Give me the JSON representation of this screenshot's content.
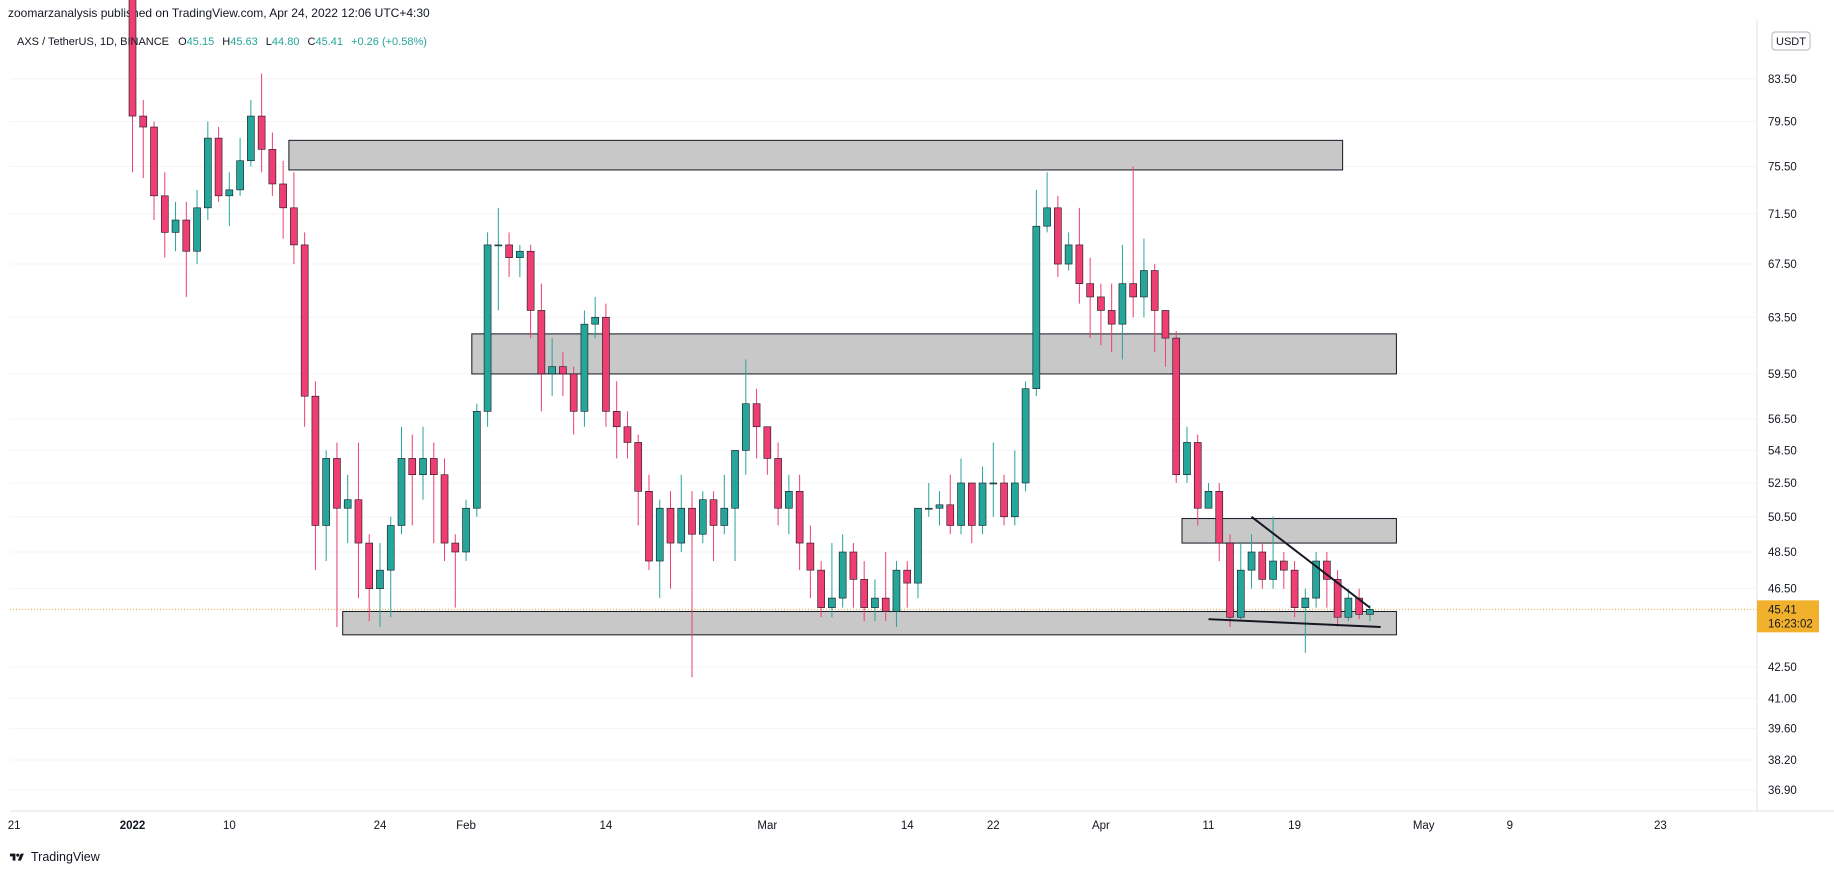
{
  "header": {
    "published": "zoomarzanalysis published on TradingView.com, Apr 24, 2022 12:06 UTC+4:30"
  },
  "legend": {
    "symbol": "AXS / TetherUS, 1D, BINANCE",
    "open_label": "O",
    "open": "45.15",
    "high_label": "H",
    "high": "45.63",
    "low_label": "L",
    "low": "44.80",
    "close_label": "C",
    "close": "45.41",
    "change": "+0.26 (+0.58%)"
  },
  "footer": {
    "brand": "TradingView"
  },
  "colors": {
    "up": "#26a69a",
    "down": "#ef3e72",
    "zone_fill": "#c8c8c8",
    "price_badge": "#f2b12c",
    "last_price_line": "#f2a93b"
  },
  "chart_data": {
    "type": "candlestick",
    "currency_label": "USDT",
    "last_price": "45.41",
    "countdown": "16:23:02",
    "y_scale": "log",
    "ylim": [
      36.4,
      87.5
    ],
    "y_ticks": [
      "83.50",
      "79.50",
      "75.50",
      "71.50",
      "67.50",
      "63.50",
      "59.50",
      "56.50",
      "54.50",
      "52.50",
      "50.50",
      "48.50",
      "46.50",
      "42.50",
      "41.00",
      "39.60",
      "38.20",
      "36.90"
    ],
    "x_labels": [
      {
        "day": -11,
        "label": "21"
      },
      {
        "day": 0,
        "label": "2022"
      },
      {
        "day": 9,
        "label": "10"
      },
      {
        "day": 23,
        "label": "24"
      },
      {
        "day": 31,
        "label": "Feb"
      },
      {
        "day": 44,
        "label": "14"
      },
      {
        "day": 59,
        "label": "Mar"
      },
      {
        "day": 72,
        "label": "14"
      },
      {
        "day": 80,
        "label": "22"
      },
      {
        "day": 90,
        "label": "Apr"
      },
      {
        "day": 100,
        "label": "11"
      },
      {
        "day": 108,
        "label": "19"
      },
      {
        "day": 120,
        "label": "May"
      },
      {
        "day": 128,
        "label": "9"
      },
      {
        "day": 142,
        "label": "23"
      }
    ],
    "x_start": "2022-01-05",
    "ohlc": [
      [
        94.0,
        80.0,
        75.0,
        99.0
      ],
      [
        80.0,
        79.0,
        74.5,
        81.5
      ],
      [
        79.0,
        73.0,
        71.0,
        79.5
      ],
      [
        73.0,
        70.0,
        68.0,
        75.0
      ],
      [
        70.0,
        71.0,
        68.5,
        72.5
      ],
      [
        71.0,
        68.5,
        65.0,
        72.5
      ],
      [
        68.5,
        72.0,
        67.5,
        73.5
      ],
      [
        72.0,
        78.0,
        71.0,
        79.5
      ],
      [
        78.0,
        73.0,
        72.5,
        79.0
      ],
      [
        73.0,
        73.5,
        70.5,
        75.0
      ],
      [
        73.5,
        76.0,
        73.0,
        78.0
      ],
      [
        76.0,
        80.0,
        75.5,
        81.5
      ],
      [
        80.0,
        77.0,
        75.0,
        84.0
      ],
      [
        77.0,
        74.0,
        73.0,
        78.5
      ],
      [
        74.0,
        72.0,
        69.5,
        76.0
      ],
      [
        72.0,
        69.0,
        67.5,
        75.0
      ],
      [
        69.0,
        58.0,
        56.0,
        70.0
      ],
      [
        58.0,
        50.0,
        47.5,
        59.0
      ],
      [
        50.0,
        54.0,
        48.0,
        54.5
      ],
      [
        54.0,
        51.0,
        44.5,
        55.0
      ],
      [
        51.0,
        51.5,
        49.0,
        53.0
      ],
      [
        51.5,
        49.0,
        46.0,
        55.0
      ],
      [
        49.0,
        46.5,
        44.8,
        49.5
      ],
      [
        46.5,
        47.5,
        44.5,
        49.0
      ],
      [
        47.5,
        50.0,
        45.0,
        50.5
      ],
      [
        50.0,
        54.0,
        49.5,
        56.0
      ],
      [
        54.0,
        53.0,
        50.0,
        55.5
      ],
      [
        53.0,
        54.0,
        51.5,
        56.0
      ],
      [
        54.0,
        53.0,
        49.0,
        55.0
      ],
      [
        53.0,
        49.0,
        48.0,
        54.0
      ],
      [
        49.0,
        48.5,
        45.5,
        49.5
      ],
      [
        48.5,
        51.0,
        48.0,
        51.5
      ],
      [
        51.0,
        57.0,
        50.5,
        57.5
      ],
      [
        57.0,
        69.0,
        56.0,
        70.0
      ],
      [
        69.0,
        69.0,
        64.0,
        72.0
      ],
      [
        69.0,
        68.0,
        66.5,
        70.0
      ],
      [
        68.0,
        68.5,
        66.5,
        69.0
      ],
      [
        68.5,
        64.0,
        62.0,
        69.0
      ],
      [
        64.0,
        59.5,
        57.0,
        66.0
      ],
      [
        59.5,
        60.0,
        58.0,
        62.0
      ],
      [
        60.0,
        59.5,
        58.0,
        61.0
      ],
      [
        59.5,
        57.0,
        55.5,
        60.0
      ],
      [
        57.0,
        63.0,
        56.0,
        64.0
      ],
      [
        63.0,
        63.5,
        62.0,
        65.0
      ],
      [
        63.5,
        57.0,
        56.0,
        64.5
      ],
      [
        57.0,
        56.0,
        54.0,
        59.0
      ],
      [
        56.0,
        55.0,
        54.0,
        57.0
      ],
      [
        55.0,
        52.0,
        50.0,
        55.5
      ],
      [
        52.0,
        48.0,
        47.5,
        53.0
      ],
      [
        48.0,
        51.0,
        46.0,
        51.5
      ],
      [
        51.0,
        49.0,
        46.5,
        52.0
      ],
      [
        49.0,
        51.0,
        48.5,
        53.0
      ],
      [
        51.0,
        49.5,
        42.0,
        52.0
      ],
      [
        49.5,
        51.5,
        49.0,
        52.0
      ],
      [
        51.5,
        50.0,
        48.0,
        52.0
      ],
      [
        50.0,
        51.0,
        49.5,
        53.0
      ],
      [
        51.0,
        54.5,
        48.0,
        54.5
      ],
      [
        54.5,
        57.5,
        53.0,
        60.5
      ],
      [
        57.5,
        56.0,
        54.0,
        58.5
      ],
      [
        56.0,
        54.0,
        53.0,
        56.0
      ],
      [
        54.0,
        51.0,
        50.0,
        55.0
      ],
      [
        51.0,
        52.0,
        49.5,
        53.0
      ],
      [
        52.0,
        49.0,
        47.5,
        53.0
      ],
      [
        49.0,
        47.5,
        46.0,
        50.0
      ],
      [
        47.5,
        45.5,
        45.0,
        48.0
      ],
      [
        45.5,
        46.0,
        45.0,
        49.0
      ],
      [
        46.0,
        48.5,
        45.5,
        49.5
      ],
      [
        48.5,
        47.0,
        45.5,
        49.0
      ],
      [
        47.0,
        45.5,
        44.8,
        48.0
      ],
      [
        45.5,
        46.0,
        44.8,
        47.0
      ],
      [
        46.0,
        45.3,
        44.8,
        48.5
      ],
      [
        45.3,
        47.5,
        44.5,
        48.0
      ],
      [
        47.5,
        46.8,
        45.5,
        48.0
      ],
      [
        46.8,
        51.0,
        46.0,
        51.0
      ],
      [
        51.0,
        51.0,
        50.5,
        52.5
      ],
      [
        51.0,
        51.2,
        50.0,
        52.0
      ],
      [
        51.2,
        50.0,
        49.5,
        53.0
      ],
      [
        50.0,
        52.5,
        49.5,
        54.0
      ],
      [
        52.5,
        50.0,
        49.0,
        52.5
      ],
      [
        50.0,
        52.5,
        49.5,
        53.5
      ],
      [
        52.5,
        52.5,
        50.5,
        55.0
      ],
      [
        52.5,
        50.5,
        50.0,
        53.0
      ],
      [
        50.5,
        52.5,
        50.0,
        54.5
      ],
      [
        52.5,
        58.5,
        52.0,
        59.0
      ],
      [
        58.5,
        70.5,
        58.0,
        73.5
      ],
      [
        70.5,
        72.0,
        70.0,
        75.0
      ],
      [
        72.0,
        67.5,
        66.5,
        73.0
      ],
      [
        67.5,
        69.0,
        67.0,
        70.0
      ],
      [
        69.0,
        66.0,
        64.5,
        72.0
      ],
      [
        66.0,
        65.0,
        62.0,
        68.0
      ],
      [
        65.0,
        64.0,
        61.5,
        66.0
      ],
      [
        64.0,
        63.0,
        61.0,
        66.0
      ],
      [
        63.0,
        66.0,
        60.5,
        69.0
      ],
      [
        66.0,
        65.0,
        63.5,
        75.5
      ],
      [
        65.0,
        67.0,
        63.5,
        69.5
      ],
      [
        67.0,
        64.0,
        61.0,
        67.5
      ],
      [
        64.0,
        62.0,
        60.0,
        64.0
      ],
      [
        62.0,
        53.0,
        52.5,
        62.5
      ],
      [
        53.0,
        55.0,
        52.5,
        56.0
      ],
      [
        55.0,
        51.0,
        50.0,
        55.5
      ],
      [
        51.0,
        52.0,
        51.0,
        52.5
      ],
      [
        52.0,
        49.0,
        48.0,
        52.5
      ],
      [
        49.0,
        45.0,
        44.5,
        49.5
      ],
      [
        45.0,
        47.5,
        44.8,
        49.0
      ],
      [
        47.5,
        48.5,
        46.5,
        49.5
      ],
      [
        48.5,
        47.0,
        46.5,
        49.0
      ],
      [
        47.0,
        48.0,
        46.5,
        50.5
      ],
      [
        48.0,
        47.5,
        46.5,
        48.5
      ],
      [
        47.5,
        45.5,
        45.0,
        48.0
      ],
      [
        45.5,
        46.0,
        43.2,
        46.5
      ],
      [
        46.0,
        48.0,
        45.5,
        48.5
      ],
      [
        48.0,
        47.0,
        45.5,
        48.5
      ],
      [
        47.0,
        45.0,
        44.5,
        47.5
      ],
      [
        45.0,
        46.0,
        44.8,
        46.5
      ],
      [
        46.0,
        45.15,
        44.9,
        46.5
      ],
      [
        45.15,
        45.41,
        44.8,
        45.63
      ]
    ],
    "annotations": {
      "zones": [
        {
          "from_day": 15,
          "to_day": 112,
          "low": 75.2,
          "high": 77.8
        },
        {
          "from_day": 32,
          "to_day": 117,
          "low": 59.5,
          "high": 62.3
        },
        {
          "from_day": 98,
          "to_day": 117,
          "low": 49.0,
          "high": 50.4
        },
        {
          "from_day": 20,
          "to_day": 117,
          "low": 44.1,
          "high": 45.3
        }
      ],
      "trendlines": [
        {
          "from_day": 104,
          "from_price": 50.5,
          "to_day": 115,
          "to_price": 45.5
        },
        {
          "from_day": 100,
          "from_price": 44.9,
          "to_day": 116,
          "to_price": 44.5
        }
      ]
    }
  }
}
